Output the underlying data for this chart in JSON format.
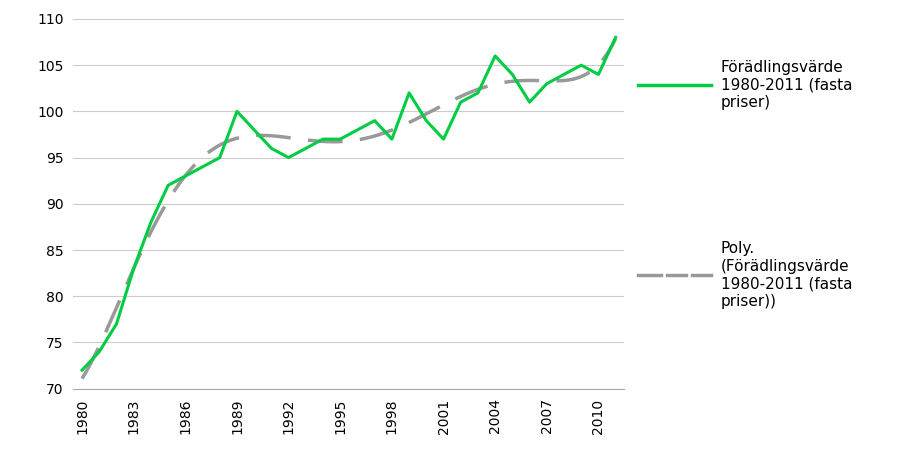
{
  "years": [
    1980,
    1981,
    1982,
    1983,
    1984,
    1985,
    1986,
    1987,
    1988,
    1989,
    1990,
    1991,
    1992,
    1993,
    1994,
    1995,
    1996,
    1997,
    1998,
    1999,
    2000,
    2001,
    2002,
    2003,
    2004,
    2005,
    2006,
    2007,
    2008,
    2009,
    2010,
    2011
  ],
  "values": [
    72,
    74,
    77,
    83,
    88,
    92,
    93,
    94,
    95,
    100,
    98,
    96,
    95,
    96,
    97,
    97,
    98,
    99,
    97,
    102,
    99,
    97,
    101,
    102,
    106,
    104,
    101,
    103,
    104,
    105,
    104,
    108
  ],
  "line_color": "#00cc44",
  "line_width": 2.2,
  "poly_color": "#999999",
  "poly_dash": [
    10,
    5
  ],
  "poly_linewidth": 2.5,
  "legend_label_green": "Förädlingsvärde\n1980-2011 (fasta\npriser)",
  "legend_label_poly": "Poly.\n(Förädlingsvärde\n1980-2011 (fasta\npriser))",
  "ylim": [
    70,
    110
  ],
  "yticks": [
    70,
    75,
    80,
    85,
    90,
    95,
    100,
    105,
    110
  ],
  "xtick_labels": [
    "1980",
    "1983",
    "1986",
    "1989",
    "1992",
    "1995",
    "1998",
    "2001",
    "2004",
    "2007",
    "2010"
  ],
  "xtick_years": [
    1980,
    1983,
    1986,
    1989,
    1992,
    1995,
    1998,
    2001,
    2004,
    2007,
    2010
  ],
  "background_color": "#ffffff",
  "grid_color": "#cccccc",
  "poly_degree": 6,
  "figsize": [
    9.18,
    4.74
  ],
  "dpi": 100
}
